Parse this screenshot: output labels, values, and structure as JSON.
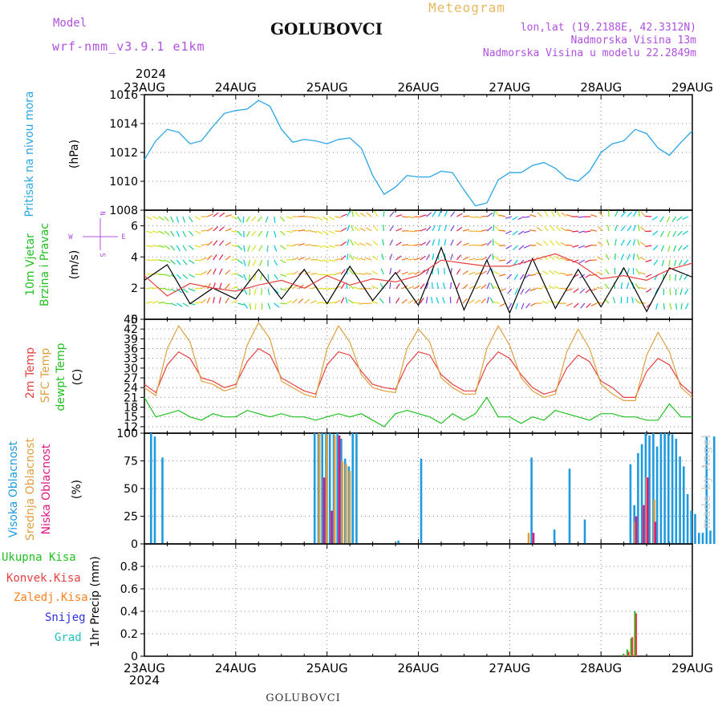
{
  "header": {
    "model_label": "Model",
    "model_name": "wrf-nmm_v3.9.1 e1km",
    "station": "GOLUBOVCI",
    "meteogram": "Meteogram",
    "lonlat": "lon,lat (19.2188E, 42.3312N)",
    "elev": "Nadmorska Visina 13m",
    "elev_model": "Nadmorska Visina u modelu 22.2849m"
  },
  "footer": {
    "station": "GOLUBOVCI",
    "credit": "made by Angel"
  },
  "time_axis": {
    "year": "2024",
    "labels": [
      "23AUG",
      "24AUG",
      "25AUG",
      "26AUG",
      "27AUG",
      "28AUG",
      "29AUG"
    ]
  },
  "colors": {
    "pressure": "#2aa6e6",
    "temp2m": "#e84040",
    "sfc": "#e0a040",
    "dewpt": "#22c022",
    "cloud_high": "#1e9be0",
    "cloud_mid": "#e0a040",
    "cloud_low": "#e01880",
    "precip_total": "#22c022",
    "precip_conv": "#e84040",
    "precip_strat": "#ff8020",
    "snow": "#3030e0",
    "hail": "#20c0c0",
    "wind_black": "#000000",
    "wind_gust": "#e84040"
  },
  "chart_data": [
    {
      "type": "line",
      "panel": "pressure",
      "ylabel": "Pritisak na nivou mora",
      "unit": "(hPa)",
      "ylim": [
        1008,
        1016
      ],
      "yticks": [
        1008,
        1010,
        1012,
        1014,
        1016
      ],
      "grid": true,
      "series": [
        {
          "name": "Pritisak na nivou mora",
          "x": [
            0,
            3,
            6,
            9,
            12,
            15,
            18,
            21,
            24,
            27,
            30,
            33,
            36,
            39,
            42,
            45,
            48,
            51,
            54,
            57,
            60,
            63,
            66,
            69,
            72,
            75,
            78,
            81,
            84,
            87,
            90,
            93,
            96,
            99,
            102,
            105,
            108,
            111,
            114,
            117,
            120,
            123,
            126,
            129,
            132,
            135,
            138,
            141,
            144
          ],
          "values": [
            1011.5,
            1012.8,
            1013.6,
            1013.4,
            1012.6,
            1012.8,
            1013.8,
            1014.7,
            1014.9,
            1015.0,
            1015.6,
            1015.2,
            1013.6,
            1012.7,
            1012.9,
            1012.8,
            1012.6,
            1012.9,
            1013.0,
            1012.3,
            1010.4,
            1009.1,
            1009.6,
            1010.4,
            1010.3,
            1010.3,
            1010.7,
            1010.6,
            1009.4,
            1008.3,
            1008.5,
            1010.1,
            1010.6,
            1010.6,
            1011.1,
            1011.3,
            1010.9,
            1010.2,
            1010.0,
            1010.7,
            1012.0,
            1012.6,
            1012.8,
            1013.6,
            1013.3,
            1012.3,
            1011.8,
            1012.7,
            1013.5
          ]
        }
      ]
    },
    {
      "type": "line",
      "panel": "wind",
      "ylabel": "10m Vjetar Brzina i Pravac",
      "unit": "(m/s)",
      "compass": [
        "N",
        "S",
        "W",
        "E"
      ],
      "ylim": [
        0,
        7
      ],
      "yticks": [
        0,
        2,
        4,
        6
      ],
      "grid": true,
      "series": [
        {
          "name": "Brzina",
          "x": [
            0,
            6,
            12,
            18,
            24,
            30,
            36,
            42,
            48,
            54,
            60,
            66,
            72,
            78,
            84,
            90,
            96,
            102,
            108,
            114,
            120,
            126,
            132,
            138,
            144
          ],
          "values": [
            2.5,
            3.5,
            1.0,
            2.0,
            1.3,
            3.2,
            1.3,
            3.2,
            1.0,
            3.4,
            1.2,
            3.0,
            0.9,
            4.6,
            0.6,
            3.8,
            0.4,
            3.9,
            0.7,
            3.2,
            0.8,
            3.3,
            0.5,
            3.3,
            2.7
          ]
        },
        {
          "name": "Udari",
          "x": [
            0,
            6,
            12,
            18,
            24,
            30,
            36,
            42,
            48,
            54,
            60,
            66,
            72,
            78,
            84,
            90,
            96,
            102,
            108,
            114,
            120,
            126,
            132,
            138,
            144
          ],
          "values": [
            2.8,
            1.5,
            2.3,
            2.0,
            1.8,
            2.2,
            2.5,
            2.0,
            2.8,
            2.2,
            2.6,
            2.4,
            2.8,
            3.8,
            3.6,
            3.4,
            3.4,
            3.8,
            4.2,
            3.6,
            2.6,
            2.8,
            2.5,
            3.2,
            3.6
          ]
        }
      ]
    },
    {
      "type": "line",
      "panel": "temperature",
      "ylabel": "2m Temp / SFC Temp / dewpt Temp",
      "unit": "(C)",
      "ylim": [
        10,
        45
      ],
      "yticks": [
        12,
        15,
        18,
        21,
        24,
        27,
        30,
        33,
        36,
        39,
        42,
        45
      ],
      "grid": true,
      "series": [
        {
          "name": "2m Temp",
          "x": [
            0,
            3,
            6,
            9,
            12,
            15,
            18,
            21,
            24,
            27,
            30,
            33,
            36,
            39,
            42,
            45,
            48,
            51,
            54,
            57,
            60,
            63,
            66,
            69,
            72,
            75,
            78,
            81,
            84,
            87,
            90,
            93,
            96,
            99,
            102,
            105,
            108,
            111,
            114,
            117,
            120,
            123,
            126,
            129,
            132,
            135,
            138,
            141,
            144
          ],
          "values": [
            25,
            22.5,
            31,
            35,
            33,
            27,
            26,
            24,
            25,
            32,
            36,
            34,
            27,
            25,
            23,
            22,
            31,
            35,
            34,
            29,
            25,
            24,
            23.5,
            31,
            35,
            34,
            28,
            25,
            23,
            23,
            31,
            35,
            33,
            28,
            24,
            22,
            23,
            30,
            34,
            32,
            26,
            24,
            21,
            21,
            29,
            33,
            31,
            25,
            22
          ]
        },
        {
          "name": "SFC Temp",
          "x": [
            0,
            3,
            6,
            9,
            12,
            15,
            18,
            21,
            24,
            27,
            30,
            33,
            36,
            39,
            42,
            45,
            48,
            51,
            54,
            57,
            60,
            63,
            66,
            69,
            72,
            75,
            78,
            81,
            84,
            87,
            90,
            93,
            96,
            99,
            102,
            105,
            108,
            111,
            114,
            117,
            120,
            123,
            126,
            129,
            132,
            135,
            138,
            141,
            144
          ],
          "values": [
            24,
            21.5,
            36,
            43,
            38,
            26,
            25,
            23,
            24,
            37,
            44,
            39,
            26,
            24,
            22,
            21,
            36,
            43,
            38,
            28,
            24,
            23,
            22.5,
            36,
            42,
            38,
            27,
            24,
            22,
            22,
            36,
            43,
            37,
            27,
            23,
            21,
            22,
            35,
            42,
            36,
            25,
            22,
            20,
            20,
            34,
            41,
            35,
            24,
            21
          ]
        },
        {
          "name": "dewpt Temp",
          "x": [
            0,
            3,
            6,
            9,
            12,
            15,
            18,
            21,
            24,
            27,
            30,
            33,
            36,
            39,
            42,
            45,
            48,
            51,
            54,
            57,
            60,
            63,
            66,
            69,
            72,
            75,
            78,
            81,
            84,
            87,
            90,
            93,
            96,
            99,
            102,
            105,
            108,
            111,
            114,
            117,
            120,
            123,
            126,
            129,
            132,
            135,
            138,
            141,
            144
          ],
          "values": [
            21,
            15,
            16,
            17,
            15,
            14,
            16,
            15,
            15,
            17,
            16,
            15,
            16,
            15,
            15,
            14,
            15,
            16,
            15,
            16,
            14,
            12,
            16,
            17,
            16,
            15,
            13,
            16,
            14,
            16,
            21,
            15,
            15,
            13,
            15,
            14,
            17,
            16,
            15,
            14,
            16,
            16,
            15,
            15,
            14,
            14,
            19,
            15,
            15
          ]
        }
      ]
    },
    {
      "type": "bar",
      "panel": "clouds",
      "ylabel": "Visoka Oblacnost / Srednja Oblacnost / Niska Oblacnost",
      "unit": "(%)",
      "ylim": [
        0,
        100
      ],
      "yticks": [
        0,
        25,
        50,
        75,
        100
      ],
      "grid": true,
      "series": [
        {
          "name": "Visoka Oblacnost",
          "x": [
            2,
            3,
            5,
            45,
            46,
            47,
            48,
            49,
            50,
            51,
            52,
            53,
            54,
            55,
            56,
            67,
            73,
            102,
            108,
            112,
            116,
            128,
            129,
            130,
            131,
            132,
            133,
            134,
            135,
            136,
            137,
            138,
            139,
            140,
            141,
            142,
            143,
            144,
            145,
            146,
            147,
            148,
            149,
            150,
            153,
            156,
            157
          ],
          "values": [
            100,
            97,
            78,
            100,
            100,
            100,
            100,
            100,
            99,
            100,
            95,
            77,
            70,
            100,
            100,
            3,
            77,
            78,
            13,
            68,
            22,
            72,
            35,
            82,
            90,
            100,
            98,
            100,
            88,
            100,
            100,
            100,
            99,
            95,
            79,
            70,
            45,
            30,
            27,
            10,
            10,
            97,
            12,
            97,
            100,
            10,
            97
          ]
        },
        {
          "name": "Srednja Oblacnost",
          "x": [
            46,
            48,
            50,
            52,
            53,
            54,
            101,
            129,
            132,
            134
          ],
          "values": [
            100,
            99,
            98,
            75,
            72,
            66,
            10,
            20,
            60,
            40
          ]
        },
        {
          "name": "Niska Oblacnost",
          "x": [
            47,
            49,
            51,
            102,
            129,
            131,
            132,
            134
          ],
          "values": [
            60,
            30,
            98,
            10,
            25,
            35,
            60,
            20
          ]
        }
      ]
    },
    {
      "type": "bar",
      "panel": "precip",
      "ylabel": "1hr Precip",
      "unit": "(mm)",
      "legend": [
        "Ukupna Kisa",
        "Konvek.Kisa",
        "Zaledj.Kisa",
        "Snijeg",
        "Grad"
      ],
      "ylim": [
        0,
        1.0
      ],
      "yticks": [
        0,
        0.2,
        0.4,
        0.6,
        0.8
      ],
      "grid": true,
      "series": [
        {
          "name": "Ukupna Kisa",
          "x": [
            126,
            127,
            128,
            129
          ],
          "values": [
            0.02,
            0.06,
            0.16,
            0.4
          ]
        },
        {
          "name": "Konvek.Kisa",
          "x": [
            126,
            127,
            128,
            129
          ],
          "values": [
            0.01,
            0.04,
            0.17,
            0.38
          ]
        }
      ]
    }
  ]
}
